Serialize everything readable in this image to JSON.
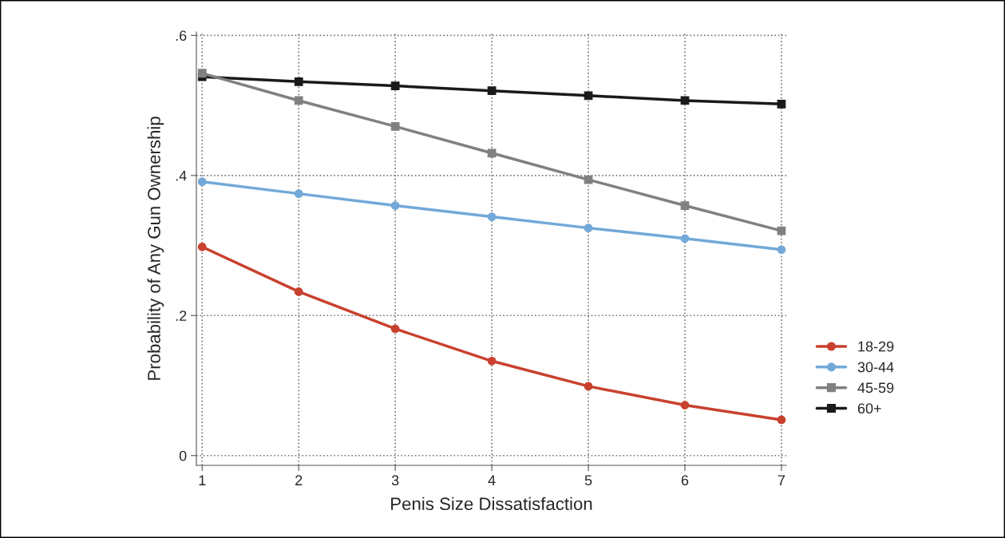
{
  "chart_data": {
    "type": "line",
    "xlabel": "Penis Size Dissatisfaction",
    "ylabel": "Probability of Any Gun Ownership",
    "x": [
      1,
      2,
      3,
      4,
      5,
      6,
      7
    ],
    "series": [
      {
        "name": "18-29",
        "color": "#c8412e",
        "marker": "circle",
        "values": [
          0.298,
          0.234,
          0.181,
          0.135,
          0.099,
          0.072,
          0.051
        ]
      },
      {
        "name": "30-44",
        "color": "#72a9d8",
        "marker": "circle",
        "values": [
          0.391,
          0.374,
          0.357,
          0.341,
          0.325,
          0.31,
          0.294
        ]
      },
      {
        "name": "45-59",
        "color": "#808080",
        "marker": "square",
        "values": [
          0.546,
          0.507,
          0.47,
          0.432,
          0.394,
          0.357,
          0.321
        ]
      },
      {
        "name": "60+",
        "color": "#1a1a1a",
        "marker": "square",
        "values": [
          0.541,
          0.534,
          0.528,
          0.521,
          0.514,
          0.507,
          0.502
        ]
      }
    ],
    "xlim": [
      0.94,
      7.05
    ],
    "xticks": [
      1,
      2,
      3,
      4,
      5,
      6,
      7
    ],
    "ylim": [
      -0.014,
      0.605
    ],
    "yticks": [
      {
        "value": 0,
        "label": "0"
      },
      {
        "value": 0.2,
        "label": ".2"
      },
      {
        "value": 0.4,
        "label": ".4"
      },
      {
        "value": 0.6,
        "label": ".6"
      }
    ],
    "grid": true,
    "legend": "right",
    "line_style": "solid"
  }
}
